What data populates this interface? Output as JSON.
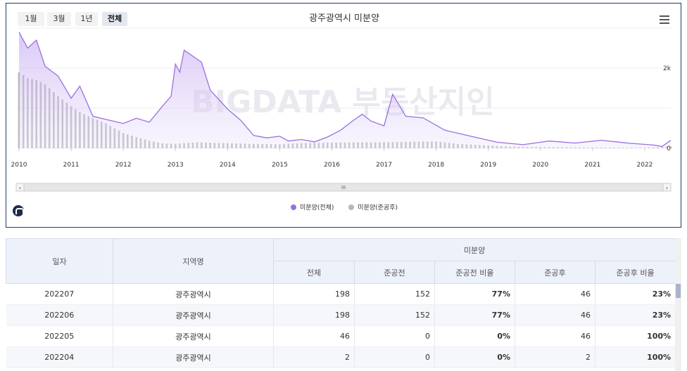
{
  "range_buttons": [
    {
      "label": "1월"
    },
    {
      "label": "3월"
    },
    {
      "label": "1년"
    },
    {
      "label": "전체"
    }
  ],
  "colors": {
    "series_total": "#9b6fe0",
    "series_after": "#b7b7b7",
    "header_bg": "#edf1f9",
    "date_link": "#2d4b8e"
  },
  "watermark": "BIGDATA 부동산지인",
  "scrollbar_grip": "III",
  "chart_data": {
    "type": "area",
    "title": "광주광역시 미분양",
    "y_ticks": [
      "0",
      "2k"
    ],
    "ylim": [
      0,
      3000
    ],
    "x_ticks": [
      "2010",
      "2011",
      "2012",
      "2013",
      "2014",
      "2015",
      "2016",
      "2017",
      "2018",
      "2019",
      "2020",
      "2021",
      "2022"
    ],
    "x_range": [
      "2010-01",
      "2022-07"
    ],
    "legend": [
      "미분양(전체)",
      "미분양(준공후)"
    ],
    "legend_position": "bottom",
    "grid": true,
    "series": [
      {
        "name": "미분양(전체)",
        "type": "area",
        "color": "#9b6fe0",
        "points": [
          [
            "2010-01",
            2900
          ],
          [
            "2010-03",
            2500
          ],
          [
            "2010-05",
            2700
          ],
          [
            "2010-07",
            2050
          ],
          [
            "2010-10",
            1800
          ],
          [
            "2011-01",
            1250
          ],
          [
            "2011-03",
            1550
          ],
          [
            "2011-06",
            800
          ],
          [
            "2011-09",
            720
          ],
          [
            "2012-01",
            620
          ],
          [
            "2012-04",
            750
          ],
          [
            "2012-07",
            650
          ],
          [
            "2012-10",
            1050
          ],
          [
            "2012-12",
            1300
          ],
          [
            "2013-01",
            2100
          ],
          [
            "2013-02",
            1900
          ],
          [
            "2013-03",
            2450
          ],
          [
            "2013-05",
            2300
          ],
          [
            "2013-07",
            2150
          ],
          [
            "2013-09",
            1450
          ],
          [
            "2014-01",
            980
          ],
          [
            "2014-04",
            700
          ],
          [
            "2014-07",
            320
          ],
          [
            "2014-10",
            260
          ],
          [
            "2015-01",
            300
          ],
          [
            "2015-03",
            180
          ],
          [
            "2015-06",
            220
          ],
          [
            "2015-09",
            160
          ],
          [
            "2015-12",
            280
          ],
          [
            "2016-03",
            450
          ],
          [
            "2016-06",
            700
          ],
          [
            "2016-08",
            850
          ],
          [
            "2016-10",
            680
          ],
          [
            "2017-01",
            560
          ],
          [
            "2017-03",
            1350
          ],
          [
            "2017-06",
            800
          ],
          [
            "2017-10",
            760
          ],
          [
            "2018-03",
            450
          ],
          [
            "2018-09",
            300
          ],
          [
            "2019-03",
            150
          ],
          [
            "2019-09",
            90
          ],
          [
            "2020-03",
            180
          ],
          [
            "2020-09",
            130
          ],
          [
            "2021-03",
            200
          ],
          [
            "2021-09",
            130
          ],
          [
            "2022-03",
            80
          ],
          [
            "2022-05",
            46
          ],
          [
            "2022-07",
            198
          ]
        ]
      },
      {
        "name": "미분양(준공후)",
        "type": "bar",
        "color": "#b7b7b7",
        "points": [
          [
            "2010-01",
            1900
          ],
          [
            "2010-03",
            1750
          ],
          [
            "2010-05",
            1700
          ],
          [
            "2010-07",
            1600
          ],
          [
            "2010-10",
            1300
          ],
          [
            "2011-01",
            1050
          ],
          [
            "2011-03",
            900
          ],
          [
            "2011-06",
            750
          ],
          [
            "2011-09",
            620
          ],
          [
            "2012-01",
            380
          ],
          [
            "2012-04",
            280
          ],
          [
            "2012-07",
            190
          ],
          [
            "2012-10",
            120
          ],
          [
            "2013-01",
            110
          ],
          [
            "2013-06",
            150
          ],
          [
            "2013-12",
            130
          ],
          [
            "2014-06",
            110
          ],
          [
            "2015-01",
            100
          ],
          [
            "2015-06",
            130
          ],
          [
            "2016-01",
            140
          ],
          [
            "2016-06",
            150
          ],
          [
            "2017-01",
            150
          ],
          [
            "2017-06",
            160
          ],
          [
            "2018-01",
            170
          ],
          [
            "2018-06",
            110
          ],
          [
            "2019-01",
            70
          ],
          [
            "2019-06",
            40
          ],
          [
            "2020-01",
            30
          ],
          [
            "2021-01",
            20
          ],
          [
            "2022-01",
            10
          ],
          [
            "2022-07",
            46
          ]
        ]
      }
    ]
  },
  "table": {
    "headers": {
      "date": "일자",
      "region": "지역명",
      "group": "미분양",
      "total": "전체",
      "pre": "준공전",
      "pre_ratio": "준공전 비율",
      "post": "준공후",
      "post_ratio": "준공후 비율"
    },
    "rows": [
      {
        "date": "202207",
        "region": "광주광역시",
        "total": "198",
        "pre": "152",
        "pre_ratio": "77%",
        "post": "46",
        "post_ratio": "23%"
      },
      {
        "date": "202206",
        "region": "광주광역시",
        "total": "198",
        "pre": "152",
        "pre_ratio": "77%",
        "post": "46",
        "post_ratio": "23%"
      },
      {
        "date": "202205",
        "region": "광주광역시",
        "total": "46",
        "pre": "0",
        "pre_ratio": "0%",
        "post": "46",
        "post_ratio": "100%"
      },
      {
        "date": "202204",
        "region": "광주광역시",
        "total": "2",
        "pre": "0",
        "pre_ratio": "0%",
        "post": "2",
        "post_ratio": "100%"
      }
    ]
  }
}
